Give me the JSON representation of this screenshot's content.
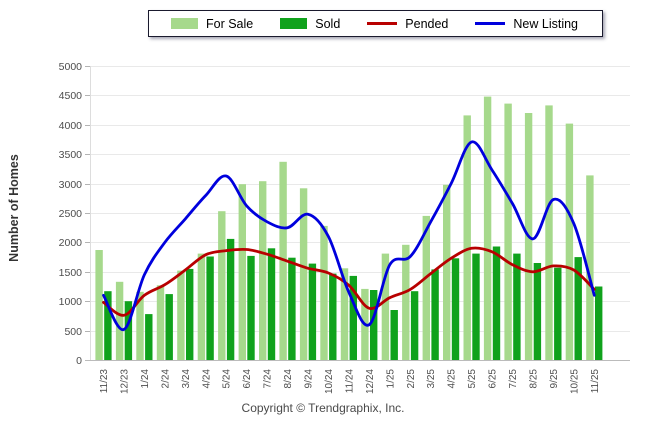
{
  "legend": {
    "items": [
      {
        "label": "For Sale",
        "swatch": "bar",
        "color": "#A6D98C"
      },
      {
        "label": "Sold",
        "swatch": "bar",
        "color": "#10A21C"
      },
      {
        "label": "Pended",
        "swatch": "line",
        "color": "#B80000"
      },
      {
        "label": "New Listing",
        "swatch": "line",
        "color": "#0000DD"
      }
    ]
  },
  "chart_data": {
    "type": "bar",
    "subtype": "grouped bars with smoothed overlay lines",
    "title": "",
    "xlabel": "",
    "ylabel": "Number of Homes",
    "ylim": [
      0,
      5000
    ],
    "y_ticks": [
      0,
      500,
      1000,
      1500,
      2000,
      2500,
      3000,
      3500,
      4000,
      4500,
      5000
    ],
    "grid": "horizontal",
    "legend_position": "top-center",
    "categories": [
      "11/23",
      "12/23",
      "1/24",
      "2/24",
      "3/24",
      "4/24",
      "5/24",
      "6/24",
      "7/24",
      "8/24",
      "9/24",
      "10/24",
      "11/24",
      "12/24",
      "1/25",
      "2/25",
      "3/25",
      "4/25",
      "5/25",
      "6/25",
      "7/25",
      "8/25",
      "9/25",
      "10/25",
      "11/25"
    ],
    "series": [
      {
        "name": "For Sale",
        "type": "bar",
        "color": "#A6D98C",
        "values": [
          1870,
          1330,
          1160,
          1270,
          1520,
          1810,
          2530,
          2990,
          3040,
          3370,
          2920,
          2280,
          1560,
          1210,
          1810,
          1960,
          2450,
          2980,
          4160,
          4480,
          4360,
          4200,
          4330,
          4020,
          3140
        ]
      },
      {
        "name": "Sold",
        "type": "bar",
        "color": "#10A21C",
        "values": [
          1170,
          1000,
          780,
          1120,
          1550,
          1760,
          2060,
          1770,
          1900,
          1740,
          1640,
          1470,
          1430,
          1190,
          850,
          1170,
          1540,
          1730,
          1810,
          1930,
          1810,
          1650,
          1570,
          1750,
          1250
        ]
      },
      {
        "name": "Pended",
        "type": "line",
        "color": "#B80000",
        "values": [
          980,
          760,
          1100,
          1280,
          1530,
          1790,
          1860,
          1880,
          1800,
          1680,
          1560,
          1480,
          1270,
          880,
          1060,
          1200,
          1470,
          1730,
          1900,
          1840,
          1620,
          1500,
          1600,
          1530,
          1200
        ]
      },
      {
        "name": "New Listing",
        "type": "line",
        "color": "#0000DD",
        "values": [
          1100,
          520,
          1450,
          2000,
          2400,
          2800,
          3130,
          2620,
          2350,
          2250,
          2480,
          2100,
          1150,
          600,
          1620,
          1760,
          2350,
          3000,
          3710,
          3230,
          2660,
          2060,
          2730,
          2320,
          1100
        ]
      }
    ]
  },
  "copyright": "Copyright © Trendgraphix, Inc."
}
